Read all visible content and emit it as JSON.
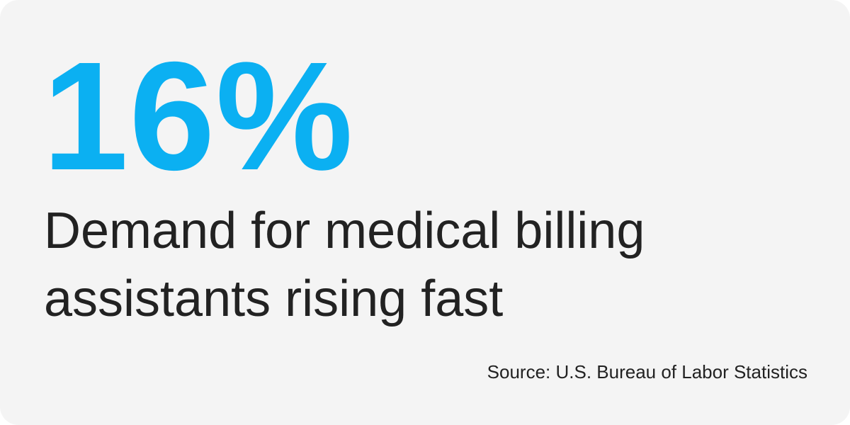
{
  "stat": {
    "value": "16%",
    "description": "Demand for medical billing assistants rising fast",
    "source": "Source: U.S. Bureau of Labor Statistics"
  },
  "colors": {
    "accent": "#0bb0f2",
    "text": "#222222",
    "card_background": "#f4f4f4"
  }
}
